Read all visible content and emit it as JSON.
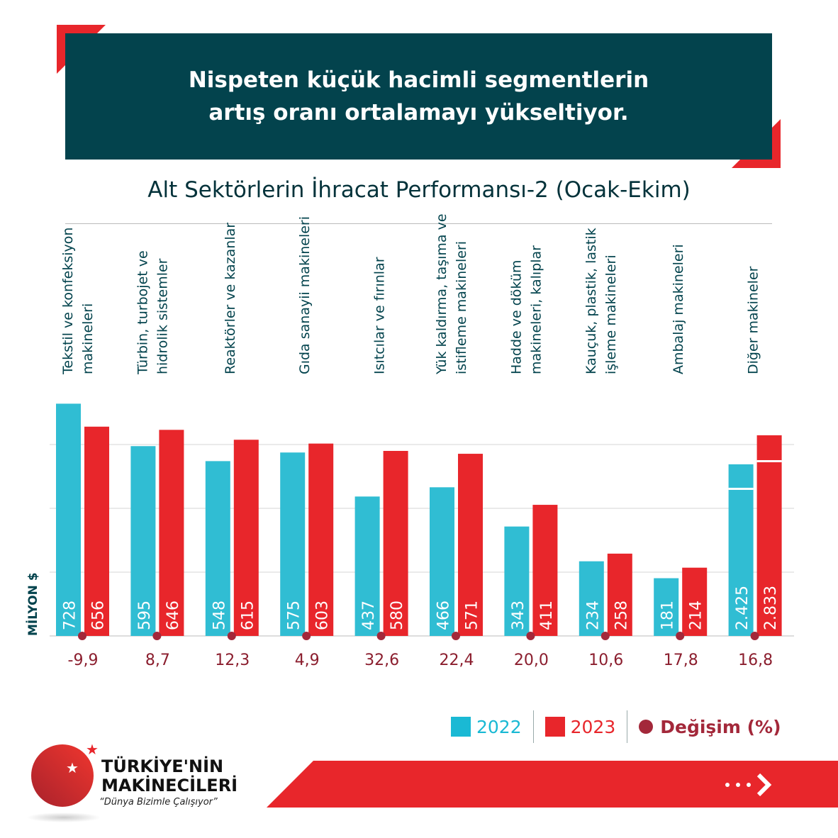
{
  "header": {
    "title_line1": "Nispeten küçük hacimli segmentlerin",
    "title_line2": "artış oranı ortalamayı yükseltiyor."
  },
  "colors": {
    "header_bg": "#03434d",
    "accent_red": "#e8262b",
    "series_2022": "#30bdd3",
    "series_2023": "#e8262b",
    "change_dot": "#a3283a"
  },
  "chart_data": {
    "type": "bar",
    "title": "Alt Sektörlerin İhracat Performansı-2 (Ocak-Ekim)",
    "ylabel": "MİLYON $",
    "grid": true,
    "gridlines": [
      200,
      400,
      600
    ],
    "categories": [
      [
        "Tekstil ve konfeksiyon",
        "makineleri"
      ],
      [
        "Türbin, turbojet ve",
        "hidrolik sistemler"
      ],
      [
        "Reaktörler ve kazanlar"
      ],
      [
        "Gıda sanayii makineleri"
      ],
      [
        "Isıtcılar ve fırınlar"
      ],
      [
        "Yük kaldırma, taşıma ve",
        "istifleme makineleri"
      ],
      [
        "Hadde ve döküm",
        "makineleri, kalıplar"
      ],
      [
        "Kauçuk, plastik, lastik",
        "işleme makineleri"
      ],
      [
        "Ambalaj makineleri"
      ],
      [
        "Diğer makineler"
      ]
    ],
    "series": [
      {
        "name": "2022",
        "values": [
          728,
          595,
          548,
          575,
          437,
          466,
          343,
          234,
          181,
          2425
        ],
        "labels": [
          "728",
          "595",
          "548",
          "575",
          "437",
          "466",
          "343",
          "234",
          "181",
          "2.425"
        ]
      },
      {
        "name": "2023",
        "values": [
          656,
          646,
          615,
          603,
          580,
          571,
          411,
          258,
          214,
          2833
        ],
        "labels": [
          "656",
          "646",
          "615",
          "603",
          "580",
          "571",
          "411",
          "258",
          "214",
          "2.833"
        ]
      }
    ],
    "change": {
      "name": "Değişim (%)",
      "labels": [
        "-9,9",
        "8,7",
        "12,3",
        "4,9",
        "32,6",
        "22,4",
        "20,0",
        "10,6",
        "17,8",
        "16,8"
      ]
    },
    "broken_axis_categories": [
      "Diğer makineler"
    ],
    "legend_position": "bottom-right"
  },
  "legend": {
    "s2022": "2022",
    "s2023": "2023",
    "change": "Değişim (%)"
  },
  "logo": {
    "line1": "TÜRKİYE'NİN",
    "line2": "MAKİNECİLERİ",
    "slogan": "“Dünya Bizimle Çalışıyor”"
  }
}
